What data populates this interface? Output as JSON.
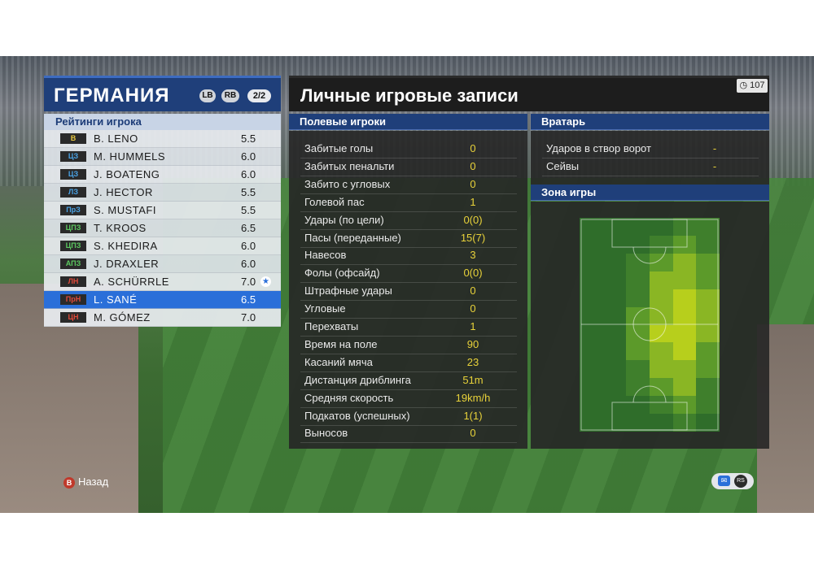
{
  "team": {
    "name": "ГЕРМАНИЯ",
    "lb": "LB",
    "rb": "RB",
    "page": "2/2"
  },
  "ratings_header": "Рейтинги игрока",
  "players": [
    {
      "pos": "В",
      "pos_color": "#e8c840",
      "name": "B. LENO",
      "rating": "5.5"
    },
    {
      "pos": "ЦЗ",
      "pos_color": "#4aa3e6",
      "name": "M. HUMMELS",
      "rating": "6.0"
    },
    {
      "pos": "ЦЗ",
      "pos_color": "#4aa3e6",
      "name": "J. BOATENG",
      "rating": "6.0"
    },
    {
      "pos": "ЛЗ",
      "pos_color": "#4aa3e6",
      "name": "J. HECTOR",
      "rating": "5.5"
    },
    {
      "pos": "ПрЗ",
      "pos_color": "#4aa3e6",
      "name": "S. MUSTAFI",
      "rating": "5.5"
    },
    {
      "pos": "ЦПЗ",
      "pos_color": "#5cc860",
      "name": "T. KROOS",
      "rating": "6.5"
    },
    {
      "pos": "ЦПЗ",
      "pos_color": "#5cc860",
      "name": "S. KHEDIRA",
      "rating": "6.0"
    },
    {
      "pos": "АПЗ",
      "pos_color": "#5cc860",
      "name": "J. DRAXLER",
      "rating": "6.0"
    },
    {
      "pos": "ЛН",
      "pos_color": "#e04a3a",
      "name": "A. SCHÜRRLE",
      "rating": "7.0",
      "star": true
    },
    {
      "pos": "ПрН",
      "pos_color": "#e04a3a",
      "name": "L. SANÉ",
      "rating": "6.5",
      "selected": true
    },
    {
      "pos": "ЦН",
      "pos_color": "#e04a3a",
      "name": "M. GÓMEZ",
      "rating": "7.0"
    }
  ],
  "records": {
    "title": "Личные игровые записи",
    "timer": "107"
  },
  "field_players": {
    "header": "Полевые игроки",
    "stats": [
      {
        "label": "Забитые голы",
        "value": "0"
      },
      {
        "label": "Забитых пенальти",
        "value": "0"
      },
      {
        "label": "Забито с угловых",
        "value": "0"
      },
      {
        "label": "Голевой пас",
        "value": "1"
      },
      {
        "label": "Удары (по цели)",
        "value": "0(0)"
      },
      {
        "label": "Пасы (переданные)",
        "value": "15(7)"
      },
      {
        "label": "Навесов",
        "value": "3"
      },
      {
        "label": "Фолы (офсайд)",
        "value": "0(0)"
      },
      {
        "label": "Штрафные удары",
        "value": "0"
      },
      {
        "label": "Угловые",
        "value": "0"
      },
      {
        "label": "Перехваты",
        "value": "1"
      },
      {
        "label": "Время на поле",
        "value": "90"
      },
      {
        "label": "Касаний мяча",
        "value": "23"
      },
      {
        "label": "Дистанция дриблинга",
        "value": "51m"
      },
      {
        "label": "Средняя скорость",
        "value": "19km/h"
      },
      {
        "label": "Подкатов (успешных)",
        "value": "1(1)"
      },
      {
        "label": "Выносов",
        "value": "0"
      }
    ]
  },
  "goalkeeper": {
    "header": "Вратарь",
    "stats": [
      {
        "label": "Ударов в створ ворот",
        "value": "-"
      },
      {
        "label": "Сейвы",
        "value": "-"
      }
    ]
  },
  "zone": {
    "header": "Зона игры"
  },
  "footer": {
    "back_icon": "B",
    "back_label": "Назад",
    "rs_label": "RS"
  }
}
